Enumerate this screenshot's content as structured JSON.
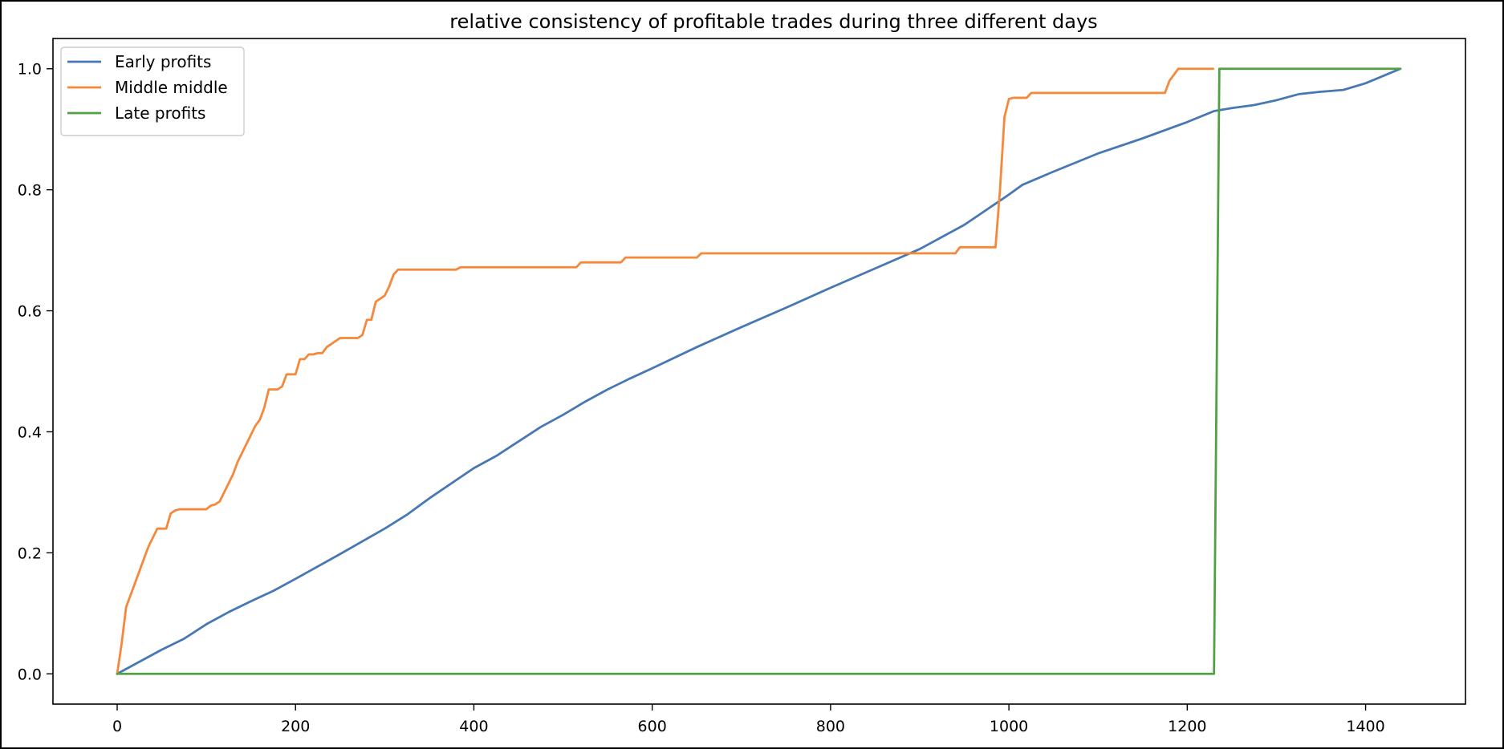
{
  "chart_data": {
    "type": "line",
    "title": "relative consistency of profitable trades during three different days",
    "xlabel": "",
    "ylabel": "",
    "xlim": [
      -72,
      1512
    ],
    "ylim": [
      -0.05,
      1.05
    ],
    "xticks": [
      0,
      200,
      400,
      600,
      800,
      1000,
      1200,
      1400
    ],
    "yticks": [
      0.0,
      0.2,
      0.4,
      0.6,
      0.8,
      1.0
    ],
    "xtick_labels": [
      "0",
      "200",
      "400",
      "600",
      "800",
      "1000",
      "1200",
      "1400"
    ],
    "ytick_labels": [
      "0.0",
      "0.2",
      "0.4",
      "0.6",
      "0.8",
      "1.0"
    ],
    "grid": false,
    "legend_position": "top-left",
    "series": [
      {
        "name": "Early profits",
        "color": "#4878b4",
        "x": [
          0,
          50,
          75,
          100,
          125,
          150,
          175,
          200,
          250,
          300,
          325,
          350,
          400,
          425,
          450,
          475,
          500,
          525,
          550,
          575,
          600,
          650,
          700,
          750,
          800,
          850,
          900,
          950,
          1000,
          1015,
          1050,
          1100,
          1150,
          1200,
          1230,
          1250,
          1275,
          1300,
          1325,
          1350,
          1375,
          1400,
          1439
        ],
        "y": [
          0.0,
          0.04,
          0.058,
          0.082,
          0.102,
          0.12,
          0.137,
          0.157,
          0.198,
          0.24,
          0.263,
          0.29,
          0.34,
          0.36,
          0.384,
          0.408,
          0.428,
          0.45,
          0.47,
          0.488,
          0.505,
          0.54,
          0.573,
          0.605,
          0.638,
          0.67,
          0.702,
          0.742,
          0.792,
          0.808,
          0.83,
          0.86,
          0.885,
          0.912,
          0.93,
          0.935,
          0.94,
          0.948,
          0.958,
          0.962,
          0.965,
          0.976,
          1.0
        ]
      },
      {
        "name": "Middle middle",
        "color": "#f5883a",
        "x": [
          0,
          5,
          10,
          15,
          20,
          25,
          30,
          35,
          40,
          45,
          50,
          55,
          60,
          65,
          70,
          100,
          105,
          110,
          115,
          120,
          125,
          130,
          135,
          140,
          145,
          150,
          155,
          160,
          165,
          170,
          175,
          180,
          185,
          190,
          195,
          200,
          205,
          210,
          215,
          220,
          225,
          230,
          235,
          240,
          245,
          250,
          255,
          260,
          265,
          270,
          275,
          280,
          285,
          290,
          295,
          300,
          305,
          310,
          315,
          380,
          385,
          515,
          520,
          565,
          570,
          650,
          655,
          940,
          945,
          985,
          990,
          995,
          1000,
          1005,
          1020,
          1025,
          1175,
          1180,
          1185,
          1190,
          1229
        ],
        "y": [
          0.0,
          0.05,
          0.11,
          0.13,
          0.15,
          0.17,
          0.19,
          0.21,
          0.225,
          0.24,
          0.24,
          0.24,
          0.265,
          0.27,
          0.272,
          0.272,
          0.278,
          0.28,
          0.285,
          0.3,
          0.315,
          0.33,
          0.35,
          0.365,
          0.38,
          0.395,
          0.41,
          0.42,
          0.44,
          0.47,
          0.47,
          0.47,
          0.475,
          0.495,
          0.495,
          0.495,
          0.52,
          0.52,
          0.528,
          0.528,
          0.53,
          0.53,
          0.54,
          0.545,
          0.55,
          0.555,
          0.555,
          0.555,
          0.555,
          0.555,
          0.56,
          0.585,
          0.585,
          0.615,
          0.62,
          0.625,
          0.64,
          0.66,
          0.668,
          0.668,
          0.672,
          0.672,
          0.68,
          0.68,
          0.688,
          0.688,
          0.695,
          0.695,
          0.705,
          0.705,
          0.8,
          0.92,
          0.95,
          0.952,
          0.952,
          0.96,
          0.96,
          0.98,
          0.99,
          1.0,
          1.0
        ]
      },
      {
        "name": "Late profits",
        "color": "#52a044",
        "x": [
          0,
          1230,
          1236,
          1439
        ],
        "y": [
          0.0,
          0.0,
          1.0,
          1.0
        ]
      }
    ]
  }
}
